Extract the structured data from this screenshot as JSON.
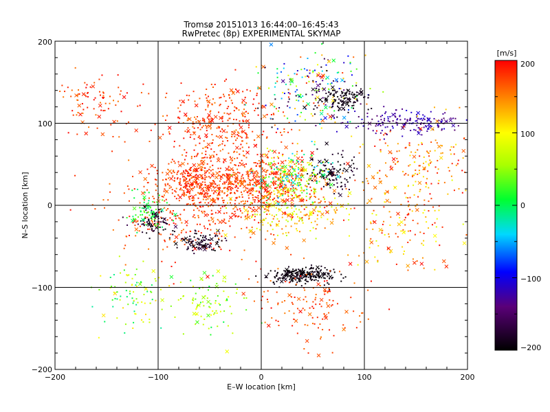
{
  "chart_data": {
    "type": "scatter",
    "title": "Tromsø 20151013 16:44:00–16:45:43",
    "subtitle": "RwPretec (8p) EXPERIMENTAL SKYMAP",
    "xlabel": "E–W location [km]",
    "ylabel": "N–S location [km]",
    "xlim": [
      -200,
      200
    ],
    "ylim": [
      -200,
      200
    ],
    "x_ticks": [
      "−200",
      "−100",
      "0",
      "100",
      "200"
    ],
    "y_ticks": [
      "−200",
      "−100",
      "0",
      "100",
      "200"
    ],
    "grid": true,
    "markers": [
      "dot",
      "x"
    ],
    "colorbar": {
      "label": "[m/s]",
      "range": [
        -200,
        200
      ],
      "ticks": [
        "200",
        "100",
        "0",
        "−100",
        "−200"
      ],
      "colormap": "black-purple-blue-cyan-green-yellow-orange-red",
      "placement": "right"
    },
    "clusters": [
      {
        "x": -10,
        "y": 25,
        "spread": [
          60,
          35
        ],
        "value_range": [
          150,
          200
        ]
      },
      {
        "x": -70,
        "y": 30,
        "spread": [
          25,
          20
        ],
        "value_range": [
          160,
          200
        ]
      },
      {
        "x": -40,
        "y": 100,
        "spread": [
          50,
          40
        ],
        "value_range": [
          150,
          200
        ]
      },
      {
        "x": -80,
        "y": -10,
        "spread": [
          60,
          50
        ],
        "value_range": [
          150,
          200
        ]
      },
      {
        "x": -160,
        "y": 120,
        "spread": [
          30,
          35
        ],
        "value_range": [
          150,
          200
        ]
      },
      {
        "x": 50,
        "y": 140,
        "spread": [
          45,
          40
        ],
        "value_range": [
          -200,
          200
        ]
      },
      {
        "x": 80,
        "y": 130,
        "spread": [
          20,
          12
        ],
        "value_range": [
          -200,
          -180
        ]
      },
      {
        "x": 140,
        "y": 100,
        "spread": [
          45,
          12
        ],
        "value_range": [
          -150,
          -100
        ]
      },
      {
        "x": 40,
        "y": -85,
        "spread": [
          25,
          8
        ],
        "value_range": [
          -200,
          -185
        ]
      },
      {
        "x": -60,
        "y": -45,
        "spread": [
          18,
          10
        ],
        "value_range": [
          -200,
          -170
        ]
      },
      {
        "x": -105,
        "y": -20,
        "spread": [
          15,
          12
        ],
        "value_range": [
          -200,
          -160
        ]
      },
      {
        "x": 70,
        "y": 40,
        "spread": [
          20,
          20
        ],
        "value_range": [
          -200,
          -170
        ]
      },
      {
        "x": 30,
        "y": 35,
        "spread": [
          30,
          25
        ],
        "value_range": [
          -60,
          120
        ]
      },
      {
        "x": 30,
        "y": -10,
        "spread": [
          45,
          25
        ],
        "value_range": [
          60,
          160
        ]
      },
      {
        "x": -110,
        "y": -10,
        "spread": [
          15,
          20
        ],
        "value_range": [
          -20,
          40
        ]
      },
      {
        "x": -120,
        "y": -110,
        "spread": [
          30,
          35
        ],
        "value_range": [
          -20,
          120
        ]
      },
      {
        "x": -50,
        "y": -120,
        "spread": [
          30,
          30
        ],
        "value_range": [
          0,
          100
        ]
      },
      {
        "x": 130,
        "y": -20,
        "spread": [
          50,
          50
        ],
        "value_range": [
          80,
          200
        ]
      },
      {
        "x": 150,
        "y": 50,
        "spread": [
          45,
          40
        ],
        "value_range": [
          100,
          200
        ]
      },
      {
        "x": 50,
        "y": -120,
        "spread": [
          50,
          40
        ],
        "value_range": [
          150,
          200
        ]
      }
    ]
  }
}
